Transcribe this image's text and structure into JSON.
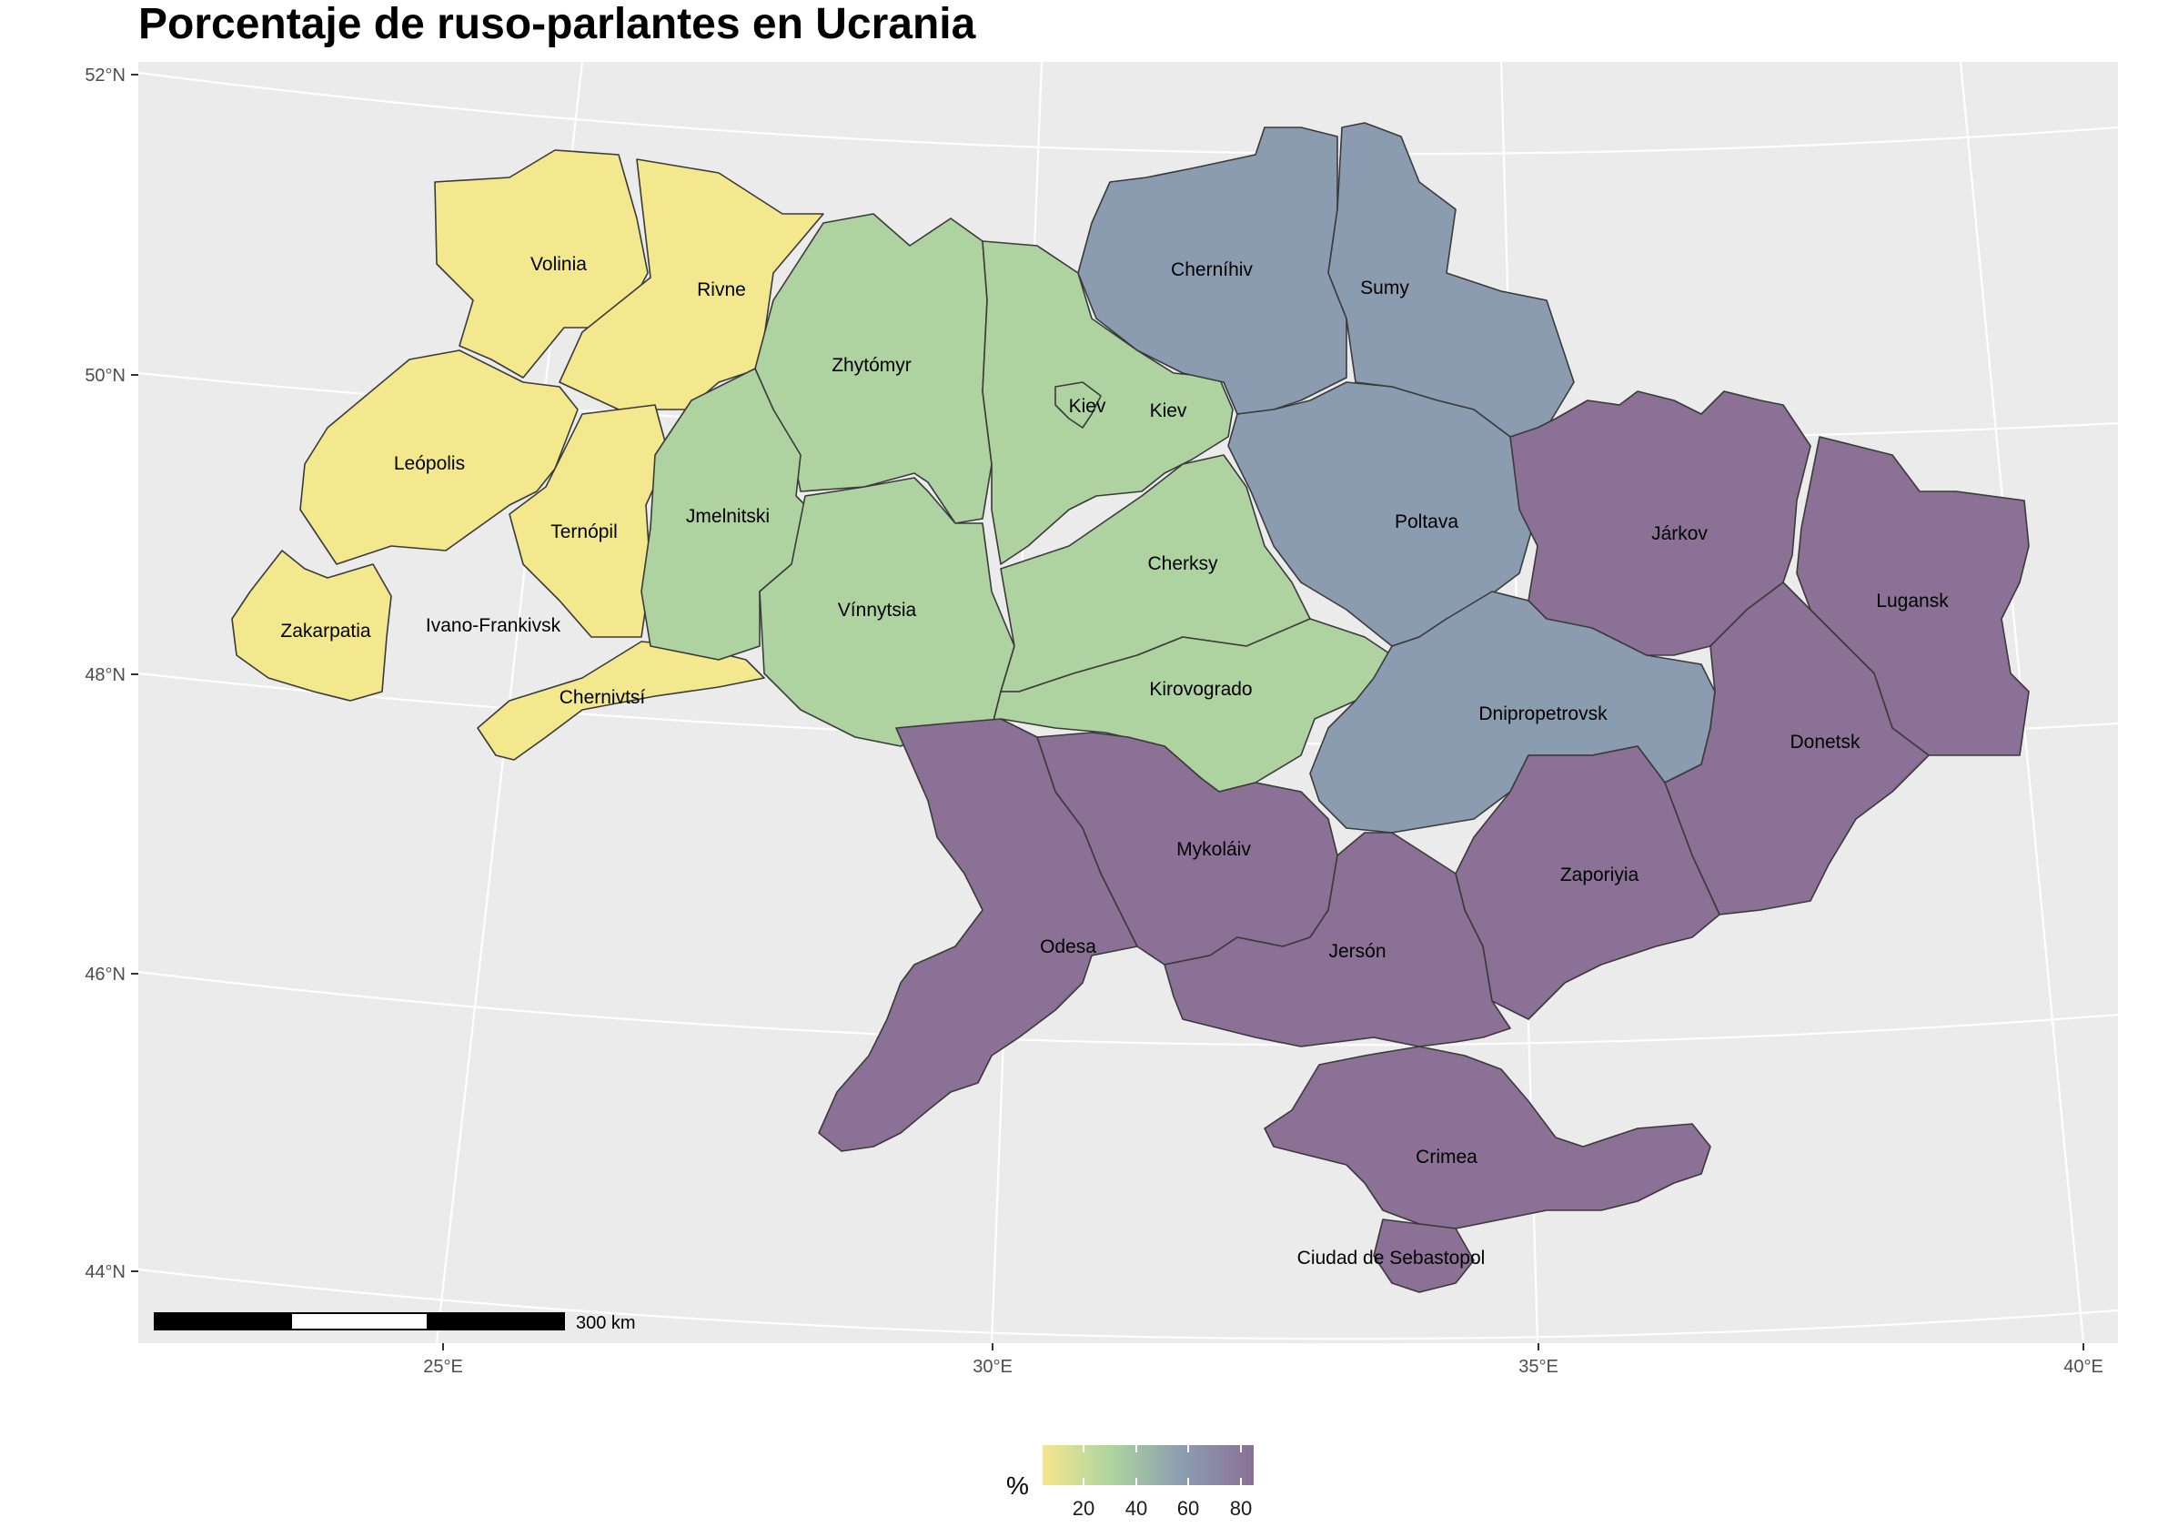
{
  "title": "Porcentaje de ruso-parlantes en Ucrania",
  "lat_labels": [
    "52°N",
    "50°N",
    "48°N",
    "46°N",
    "44°N"
  ],
  "lon_labels": [
    "25°E",
    "30°E",
    "35°E",
    "40°E"
  ],
  "scale_label": "300 km",
  "legend": {
    "title": "%",
    "ticks": [
      "20",
      "40",
      "60",
      "80"
    ],
    "colors": [
      "#f6e68e",
      "#add4a0",
      "#8c9db1",
      "#8a7196"
    ]
  },
  "colors": {
    "panel": "#ebebeb",
    "grid": "#ffffff",
    "low": "#f3e88d",
    "mid": "#aed3a1",
    "high": "#8b9cb0",
    "very_high": "#8a7195"
  },
  "regions": [
    {
      "name": "Volinia",
      "class": "low"
    },
    {
      "name": "Rivne",
      "class": "low"
    },
    {
      "name": "Leópolis",
      "class": "low"
    },
    {
      "name": "Ternópil",
      "class": "low"
    },
    {
      "name": "Zakarpatia",
      "class": "low"
    },
    {
      "name": "Ivano-Frankivsk",
      "class": "low"
    },
    {
      "name": "Chernivtsí",
      "class": "low"
    },
    {
      "name": "Zhytómyr",
      "class": "mid"
    },
    {
      "name": "Jmelnitski",
      "class": "mid"
    },
    {
      "name": "Vínnytsia",
      "class": "mid"
    },
    {
      "name": "Kiev",
      "class": "mid"
    },
    {
      "name": "Kiev",
      "class": "mid"
    },
    {
      "name": "Cherksy",
      "class": "mid"
    },
    {
      "name": "Kirovogrado",
      "class": "mid"
    },
    {
      "name": "Cherníhiv",
      "class": "high"
    },
    {
      "name": "Sumy",
      "class": "high"
    },
    {
      "name": "Poltava",
      "class": "high"
    },
    {
      "name": "Dnipropetrovsk",
      "class": "high"
    },
    {
      "name": "Járkov",
      "class": "very_high"
    },
    {
      "name": "Lugansk",
      "class": "very_high"
    },
    {
      "name": "Donetsk",
      "class": "very_high"
    },
    {
      "name": "Zaporiyia",
      "class": "very_high"
    },
    {
      "name": "Mykoláiv",
      "class": "very_high"
    },
    {
      "name": "Odesa",
      "class": "very_high"
    },
    {
      "name": "Jersón",
      "class": "very_high"
    },
    {
      "name": "Crimea",
      "class": "very_high"
    },
    {
      "name": "Ciudad de Sebastopol",
      "class": "very_high"
    }
  ]
}
